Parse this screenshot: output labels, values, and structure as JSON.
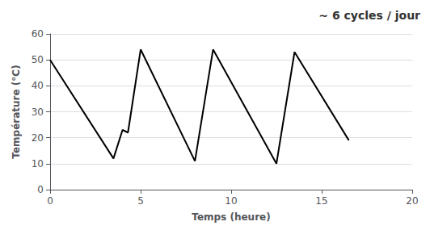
{
  "chart_data": {
    "type": "line",
    "x": [
      0,
      3.5,
      4.0,
      4.3,
      5.0,
      8.0,
      9.0,
      12.5,
      13.5,
      16.5
    ],
    "values": [
      50,
      12,
      23,
      22,
      54,
      11,
      54,
      10,
      53,
      19
    ],
    "color": "#000000",
    "xlim": [
      0,
      20
    ],
    "ylim": [
      0,
      60
    ],
    "xticks": [
      0,
      5,
      10,
      15,
      20
    ],
    "yticks": [
      0,
      10,
      20,
      30,
      40,
      50,
      60
    ],
    "xlabel": "Temps (heure)",
    "ylabel": "Température (°C)",
    "annotation": "~ 6 cycles / jour",
    "grid": true
  }
}
